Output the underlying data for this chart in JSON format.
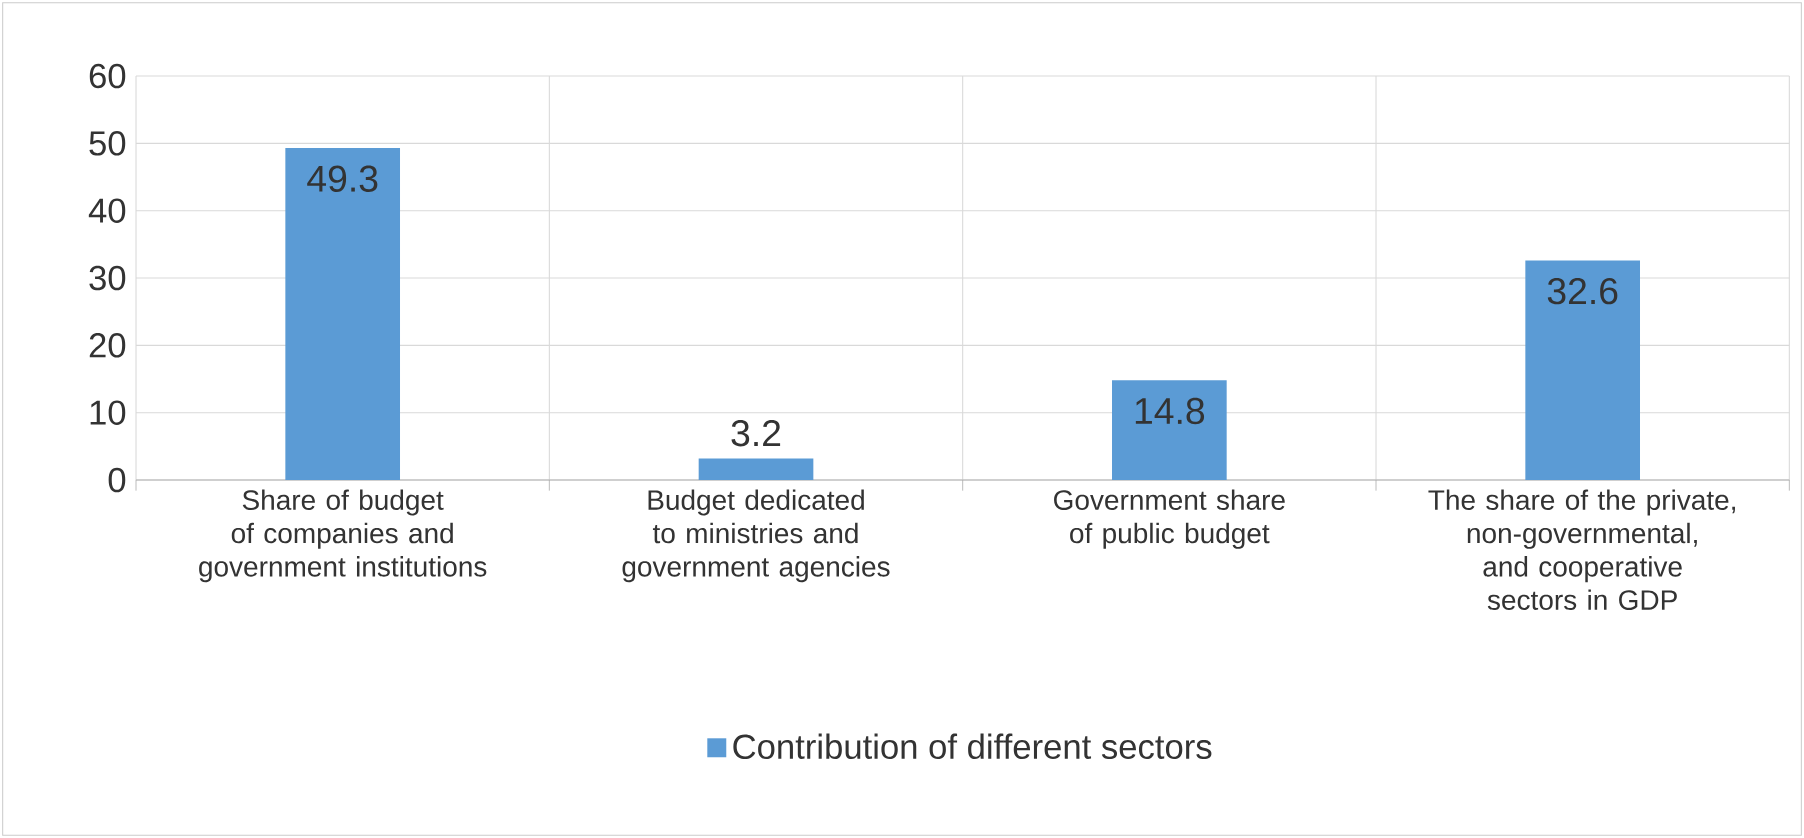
{
  "chart_data": {
    "type": "bar",
    "categories": [
      "Share of budget of companies and government institutions",
      "Budget dedicated to ministries and government agencies",
      "Government share of public budget",
      "The share of the private, non-governmental, and cooperative sectors in GDP"
    ],
    "series": [
      {
        "name": "Contribution of different sectors",
        "color": "#5b9bd5",
        "values": [
          49.3,
          3.2,
          14.8,
          32.6
        ]
      }
    ],
    "ylim": [
      0,
      60
    ],
    "yticks": [
      0,
      10,
      20,
      30,
      40,
      50,
      60
    ],
    "grid": true,
    "legend": "bottom",
    "data_labels": true
  }
}
